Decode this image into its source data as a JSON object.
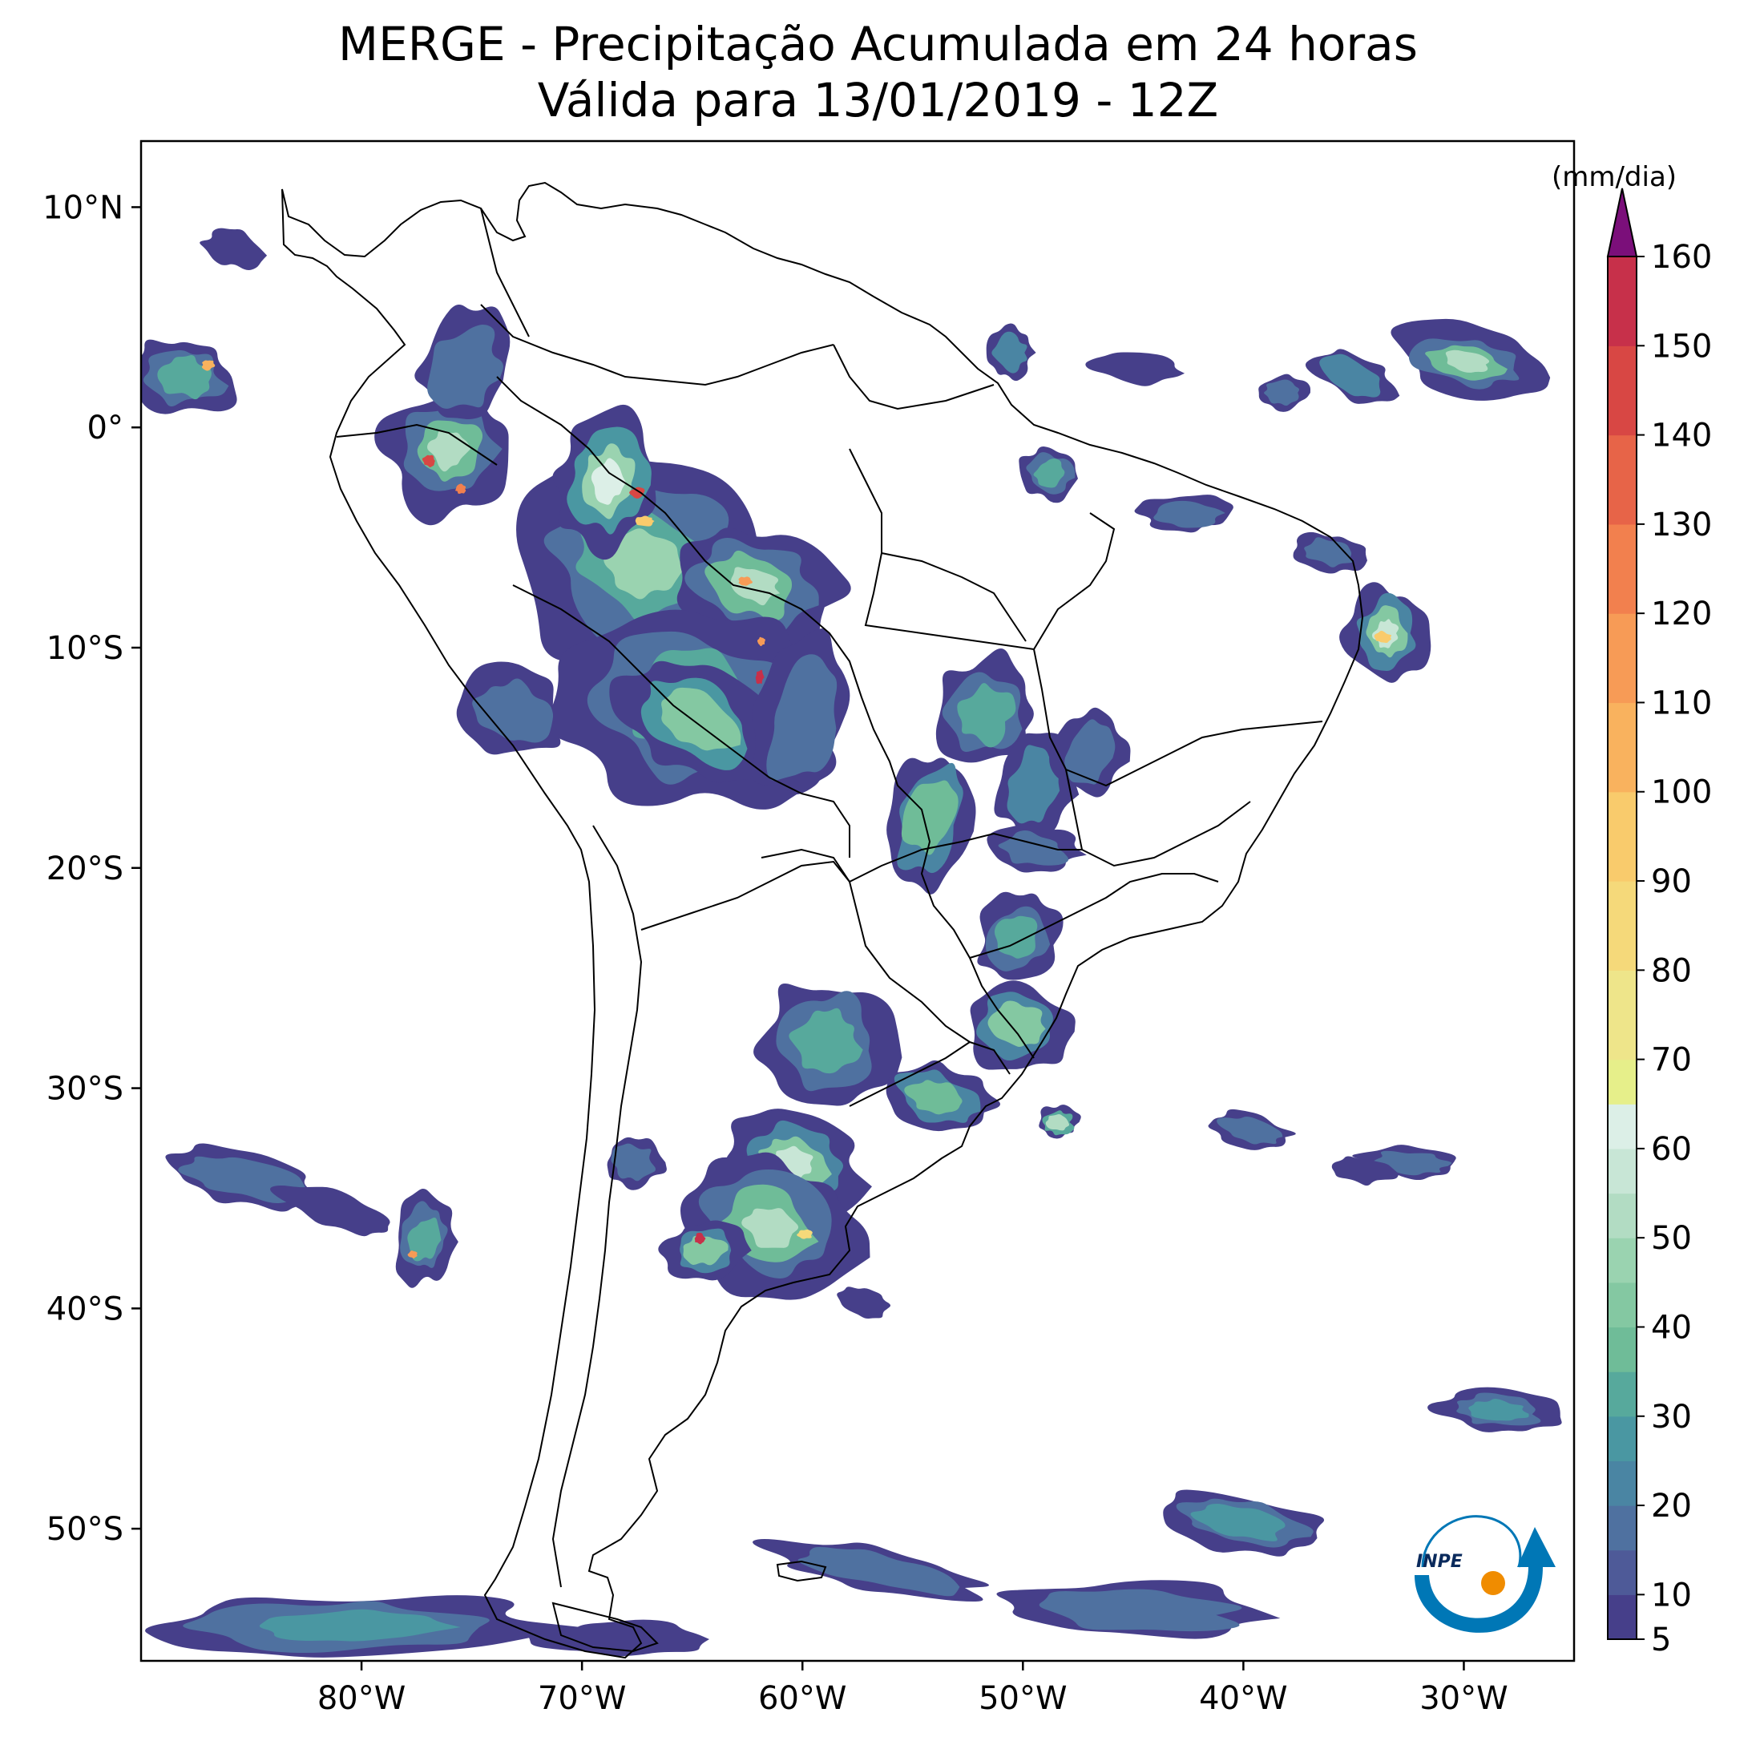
{
  "title": {
    "line1": "MERGE - Precipitação Acumulada em 24 horas",
    "line2": "Válida para 13/01/2019 - 12Z"
  },
  "axes": {
    "lat_labels": [
      "10°N",
      "0°",
      "10°S",
      "20°S",
      "30°S",
      "40°S",
      "50°S"
    ],
    "lat_values": [
      10,
      0,
      -10,
      -20,
      -30,
      -40,
      -50
    ],
    "lon_labels": [
      "80°W",
      "70°W",
      "60°W",
      "50°W",
      "40°W",
      "30°W"
    ],
    "lon_values": [
      -80,
      -70,
      -60,
      -50,
      -40,
      -30
    ],
    "lat_range": [
      -56,
      13
    ],
    "lon_range": [
      -90,
      -25
    ]
  },
  "colorbar": {
    "unit": "(mm/dia)",
    "tick_labels": [
      "5",
      "10",
      "20",
      "30",
      "40",
      "50",
      "60",
      "70",
      "80",
      "90",
      "100",
      "110",
      "120",
      "130",
      "140",
      "150",
      "160"
    ],
    "tick_values": [
      5,
      10,
      20,
      30,
      40,
      50,
      60,
      70,
      80,
      90,
      100,
      110,
      120,
      130,
      140,
      150,
      160
    ],
    "range": [
      5,
      160
    ],
    "extend": "max",
    "colors": {
      "5": "#463f8a",
      "10": "#4e5a98",
      "15": "#4f71a0",
      "20": "#4a85a3",
      "25": "#4a97a2",
      "30": "#57a99c",
      "35": "#6fbc98",
      "40": "#84c8a2",
      "45": "#9ad3b0",
      "50": "#b2dcc3",
      "55": "#c8e6d6",
      "60": "#dcefe7",
      "65": "#e6ef8a",
      "70": "#eee58a",
      "80": "#f5d97a",
      "90": "#f9cb6c",
      "100": "#f9b25e",
      "110": "#f79b56",
      "120": "#f2804e",
      "130": "#e76448",
      "140": "#d84744",
      "150": "#c7304a",
      "160": "#b0173f",
      "over": "#7b0f7a"
    }
  },
  "logo": {
    "text": "INPE",
    "accent_color": "#0077b6",
    "dot_color": "#f08c00"
  }
}
